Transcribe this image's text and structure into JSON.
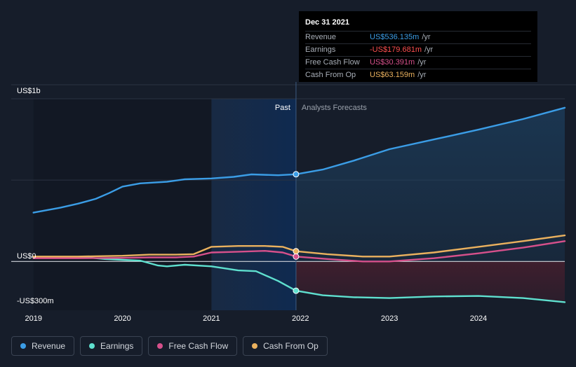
{
  "tooltip": {
    "date": "Dec 31 2021",
    "rows": [
      {
        "name": "Revenue",
        "value": "US$536.135m",
        "unit": "/yr",
        "color": "#3b9de6"
      },
      {
        "name": "Earnings",
        "value": "-US$179.681m",
        "unit": "/yr",
        "color": "#ff4f4f"
      },
      {
        "name": "Free Cash Flow",
        "value": "US$30.391m",
        "unit": "/yr",
        "color": "#d6508b"
      },
      {
        "name": "Cash From Op",
        "value": "US$63.159m",
        "unit": "/yr",
        "color": "#eab15e"
      }
    ]
  },
  "legend": [
    {
      "label": "Revenue",
      "color": "#3b9de6"
    },
    {
      "label": "Earnings",
      "color": "#5fe0cf"
    },
    {
      "label": "Free Cash Flow",
      "color": "#d6508b"
    },
    {
      "label": "Cash From Op",
      "color": "#eab15e"
    }
  ],
  "chart_data": {
    "type": "line",
    "past_label": "Past",
    "forecast_label": "Analysts Forecasts",
    "divider_x": 2021.95,
    "highlight_start": 2021.0,
    "y_tick_labels": [
      {
        "value": 1000,
        "label": "US$1b"
      },
      {
        "value": 0,
        "label": "US$0"
      },
      {
        "value": -300,
        "label": "-US$300m"
      }
    ],
    "x_ticks": [
      2019,
      2020,
      2021,
      2022,
      2023,
      2024
    ],
    "xlim": [
      2018.75,
      2024.97
    ],
    "ylim": [
      -300,
      1000
    ],
    "grid": true,
    "series": [
      {
        "name": "Revenue",
        "color": "#3b9de6",
        "x": [
          2019.0,
          2019.3,
          2019.5,
          2019.7,
          2019.85,
          2020.0,
          2020.2,
          2020.5,
          2020.7,
          2021.0,
          2021.25,
          2021.45,
          2021.75,
          2021.95,
          2022.25,
          2022.6,
          2023.0,
          2023.5,
          2024.0,
          2024.5,
          2024.97
        ],
        "y": [
          300,
          330,
          355,
          385,
          420,
          460,
          480,
          490,
          505,
          510,
          520,
          535,
          530,
          536,
          565,
          620,
          690,
          750,
          810,
          875,
          945
        ]
      },
      {
        "name": "Earnings",
        "color": "#5fe0cf",
        "x": [
          2019.0,
          2019.3,
          2019.6,
          2019.8,
          2020.0,
          2020.2,
          2020.4,
          2020.5,
          2020.7,
          2021.0,
          2021.3,
          2021.5,
          2021.75,
          2021.95,
          2022.25,
          2022.6,
          2023.0,
          2023.5,
          2024.0,
          2024.5,
          2024.97
        ],
        "y": [
          25,
          25,
          25,
          15,
          10,
          5,
          -25,
          -30,
          -20,
          -30,
          -55,
          -60,
          -120,
          -180,
          -208,
          -220,
          -225,
          -215,
          -212,
          -225,
          -250
        ]
      },
      {
        "name": "Free Cash Flow",
        "color": "#d6508b",
        "x": [
          2019.0,
          2019.5,
          2020.0,
          2020.3,
          2020.6,
          2020.8,
          2021.0,
          2021.3,
          2021.6,
          2021.8,
          2021.95,
          2022.3,
          2022.7,
          2023.0,
          2023.5,
          2024.0,
          2024.5,
          2024.97
        ],
        "y": [
          20,
          20,
          22,
          25,
          25,
          30,
          55,
          60,
          65,
          55,
          30,
          15,
          0,
          0,
          20,
          50,
          85,
          125
        ]
      },
      {
        "name": "Cash From Op",
        "color": "#eab15e",
        "x": [
          2019.0,
          2019.5,
          2020.0,
          2020.3,
          2020.6,
          2020.8,
          2021.0,
          2021.3,
          2021.6,
          2021.8,
          2021.95,
          2022.3,
          2022.7,
          2023.0,
          2023.5,
          2024.0,
          2024.5,
          2024.97
        ],
        "y": [
          30,
          30,
          35,
          42,
          42,
          45,
          90,
          95,
          95,
          90,
          63,
          45,
          30,
          30,
          55,
          90,
          125,
          160
        ]
      }
    ]
  }
}
